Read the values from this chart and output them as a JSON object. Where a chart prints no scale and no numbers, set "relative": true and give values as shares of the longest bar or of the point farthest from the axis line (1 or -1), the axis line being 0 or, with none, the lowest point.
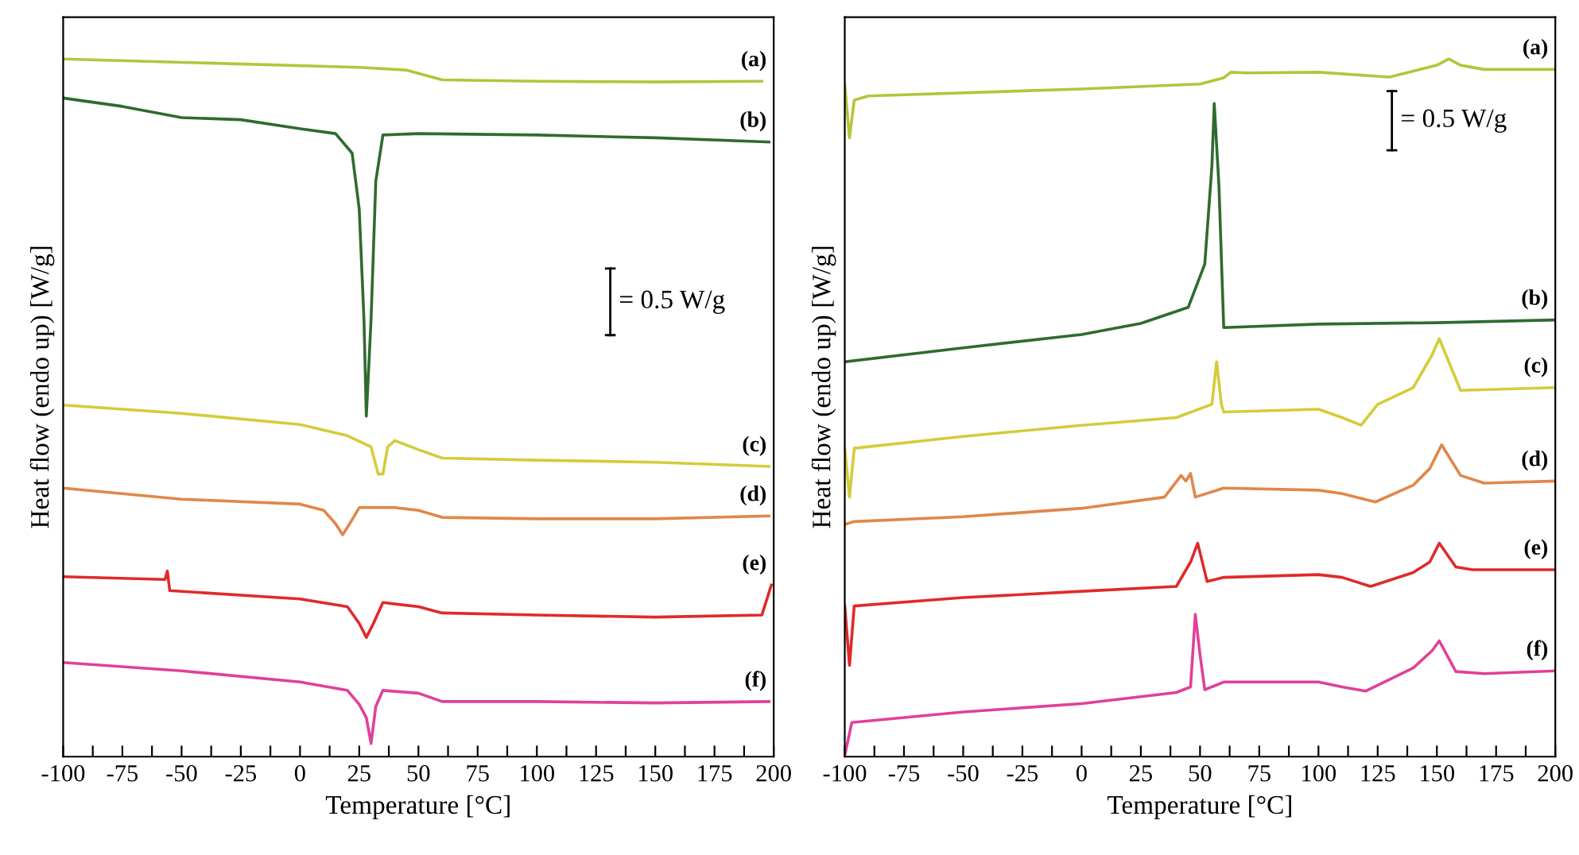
{
  "chart_data": [
    {
      "type": "line",
      "relative": true,
      "xlabel": "Temperature [°C]",
      "ylabel": "Heat flow (endo up) [W/g]",
      "xlim": [
        -100,
        200
      ],
      "xticks": [
        -100,
        {
          "value": -87.5,
          "label": null
        },
        -75,
        {
          "value": -62.5,
          "label": null
        },
        -50,
        {
          "value": -37.5,
          "label": null
        },
        -25,
        {
          "value": -12.5,
          "label": null
        },
        0,
        {
          "value": 12.5,
          "label": null
        },
        25,
        {
          "value": 37.5,
          "label": null
        },
        50,
        {
          "value": 62.5,
          "label": null
        },
        75,
        {
          "value": 87.5,
          "label": null
        },
        100,
        {
          "value": 112.5,
          "label": null
        },
        125,
        {
          "value": 137.5,
          "label": null
        },
        150,
        {
          "value": 162.5,
          "label": null
        },
        175,
        {
          "value": 187.5,
          "label": null
        },
        200
      ],
      "annotations": [
        "= 0.5 W/g"
      ],
      "grid": false,
      "legend": false,
      "line_style": "solid",
      "marker": "none",
      "series": [
        {
          "name": "(a)",
          "color": "#b5c43c",
          "x": [
            -100,
            25,
            45,
            60,
            100,
            150,
            195
          ],
          "values": [
            1.0,
            0.988,
            0.984,
            0.97,
            0.968,
            0.967,
            0.968
          ]
        },
        {
          "name": "(b)",
          "color": "#2f6b2f",
          "x": [
            -100,
            -75,
            -50,
            -25,
            0,
            15,
            22,
            25,
            27,
            28,
            30,
            32,
            35,
            50,
            100,
            150,
            198
          ],
          "values": [
            0.944,
            0.932,
            0.916,
            0.913,
            0.9,
            0.893,
            0.865,
            0.785,
            0.627,
            0.488,
            0.627,
            0.825,
            0.891,
            0.893,
            0.891,
            0.887,
            0.881
          ]
        },
        {
          "name": "(c)",
          "color": "#d4cc3a",
          "x": [
            -100,
            -50,
            0,
            20,
            30,
            33,
            35,
            37,
            40,
            50,
            60,
            100,
            150,
            198
          ],
          "values": [
            0.504,
            0.492,
            0.476,
            0.46,
            0.444,
            0.405,
            0.405,
            0.444,
            0.453,
            0.44,
            0.428,
            0.425,
            0.422,
            0.416
          ]
        },
        {
          "name": "(d)",
          "color": "#e0874a",
          "x": [
            -100,
            -50,
            0,
            10,
            15,
            18,
            21,
            25,
            40,
            50,
            60,
            100,
            150,
            198
          ],
          "values": [
            0.385,
            0.369,
            0.362,
            0.353,
            0.334,
            0.318,
            0.334,
            0.357,
            0.357,
            0.353,
            0.343,
            0.341,
            0.341,
            0.345
          ]
        },
        {
          "name": "(e)",
          "color": "#e02a2a",
          "x": [
            -100,
            -57,
            -56,
            -55,
            0,
            20,
            25,
            28,
            31,
            35,
            50,
            60,
            100,
            150,
            195,
            199
          ],
          "values": [
            0.258,
            0.254,
            0.266,
            0.238,
            0.226,
            0.215,
            0.191,
            0.171,
            0.191,
            0.221,
            0.215,
            0.206,
            0.203,
            0.2,
            0.203,
            0.246
          ]
        },
        {
          "name": "(f)",
          "color": "#e0409a",
          "x": [
            -100,
            -50,
            0,
            20,
            25,
            28,
            30,
            32,
            35,
            50,
            60,
            100,
            150,
            198
          ],
          "values": [
            0.135,
            0.123,
            0.107,
            0.095,
            0.075,
            0.056,
            0.019,
            0.072,
            0.095,
            0.091,
            0.079,
            0.079,
            0.077,
            0.079
          ]
        }
      ]
    },
    {
      "type": "line",
      "relative": true,
      "xlabel": "Temperature [°C]",
      "ylabel": "Heat flow (endo up) [W/g]",
      "xlim": [
        -100,
        200
      ],
      "xticks": [
        -100,
        {
          "value": -87.5,
          "label": null
        },
        -75,
        {
          "value": -62.5,
          "label": null
        },
        -50,
        {
          "value": -37.5,
          "label": null
        },
        -25,
        {
          "value": -12.5,
          "label": null
        },
        0,
        {
          "value": 12.5,
          "label": null
        },
        25,
        {
          "value": 37.5,
          "label": null
        },
        50,
        {
          "value": 62.5,
          "label": null
        },
        75,
        {
          "value": 87.5,
          "label": null
        },
        100,
        {
          "value": 112.5,
          "label": null
        },
        125,
        {
          "value": 137.5,
          "label": null
        },
        150,
        {
          "value": 162.5,
          "label": null
        },
        175,
        {
          "value": 187.5,
          "label": null
        },
        200
      ],
      "annotations": [
        "= 0.5 W/g"
      ],
      "grid": false,
      "legend": false,
      "line_style": "solid",
      "marker": "none",
      "series": [
        {
          "name": "(a)",
          "color": "#b5c43c",
          "x": [
            -100,
            -98,
            -96,
            -90,
            0,
            50,
            60,
            63,
            70,
            100,
            130,
            150,
            155,
            160,
            170,
            200
          ],
          "values": [
            0.964,
            0.887,
            0.941,
            0.947,
            0.957,
            0.964,
            0.973,
            0.981,
            0.98,
            0.981,
            0.974,
            0.991,
            1.0,
            0.991,
            0.985,
            0.985
          ]
        },
        {
          "name": "(b)",
          "color": "#2f6b2f",
          "x": [
            -100,
            -50,
            0,
            25,
            45,
            52,
            55,
            56,
            58,
            60,
            100,
            150,
            200
          ],
          "values": [
            0.566,
            0.586,
            0.605,
            0.621,
            0.644,
            0.706,
            0.846,
            0.936,
            0.817,
            0.615,
            0.62,
            0.622,
            0.626
          ]
        },
        {
          "name": "(c)",
          "color": "#d4cc3a",
          "x": [
            -100,
            -98,
            -96,
            -50,
            0,
            40,
            55,
            57,
            59,
            60,
            100,
            110,
            118,
            125,
            140,
            148,
            151,
            155,
            160,
            200
          ],
          "values": [
            0.442,
            0.372,
            0.442,
            0.459,
            0.475,
            0.486,
            0.505,
            0.566,
            0.505,
            0.494,
            0.498,
            0.486,
            0.475,
            0.505,
            0.529,
            0.576,
            0.599,
            0.566,
            0.525,
            0.529
          ]
        },
        {
          "name": "(d)",
          "color": "#e0874a",
          "x": [
            -100,
            -96,
            -50,
            0,
            35,
            42,
            44,
            46,
            48,
            60,
            100,
            110,
            124,
            140,
            147,
            152,
            160,
            170,
            200
          ],
          "values": [
            0.333,
            0.337,
            0.344,
            0.356,
            0.372,
            0.403,
            0.395,
            0.406,
            0.372,
            0.385,
            0.382,
            0.377,
            0.365,
            0.389,
            0.413,
            0.447,
            0.403,
            0.392,
            0.395
          ]
        },
        {
          "name": "(e)",
          "color": "#e02a2a",
          "x": [
            -100,
            -98,
            -96,
            -50,
            0,
            40,
            46,
            49,
            53,
            60,
            100,
            110,
            122,
            140,
            147,
            151,
            158,
            165,
            200
          ],
          "values": [
            0.216,
            0.131,
            0.216,
            0.228,
            0.237,
            0.244,
            0.279,
            0.306,
            0.251,
            0.257,
            0.261,
            0.257,
            0.244,
            0.264,
            0.279,
            0.306,
            0.272,
            0.268,
            0.268
          ]
        },
        {
          "name": "(f)",
          "color": "#e0409a",
          "x": [
            -100,
            -97,
            -50,
            0,
            40,
            46,
            48,
            50,
            52,
            60,
            100,
            110,
            120,
            140,
            148,
            151,
            158,
            170,
            200
          ],
          "values": [
            0.002,
            0.049,
            0.064,
            0.076,
            0.092,
            0.1,
            0.204,
            0.146,
            0.096,
            0.107,
            0.107,
            0.1,
            0.094,
            0.127,
            0.152,
            0.166,
            0.122,
            0.119,
            0.123
          ]
        }
      ]
    }
  ]
}
